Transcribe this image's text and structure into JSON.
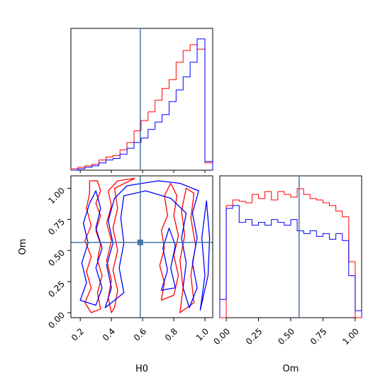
{
  "chart_data": [
    {
      "type": "step-histogram",
      "panel": "H0-marginal",
      "x_range": [
        0.14,
        1.05
      ],
      "truth_x": 0.585,
      "bin_edges": [
        0.14,
        0.185,
        0.23,
        0.275,
        0.32,
        0.365,
        0.41,
        0.455,
        0.5,
        0.545,
        0.59,
        0.635,
        0.68,
        0.725,
        0.77,
        0.815,
        0.86,
        0.905,
        0.95,
        1.0,
        1.05
      ],
      "series": [
        {
          "color": "#ff0000",
          "values": [
            0.01,
            0.02,
            0.03,
            0.04,
            0.07,
            0.09,
            0.1,
            0.14,
            0.19,
            0.27,
            0.34,
            0.4,
            0.48,
            0.56,
            0.62,
            0.74,
            0.82,
            0.86,
            0.83,
            0.05
          ]
        },
        {
          "color": "#0000ff",
          "values": [
            0.0,
            0.01,
            0.02,
            0.03,
            0.05,
            0.07,
            0.08,
            0.11,
            0.15,
            0.19,
            0.22,
            0.28,
            0.33,
            0.38,
            0.47,
            0.55,
            0.64,
            0.74,
            0.9,
            0.06
          ]
        }
      ]
    },
    {
      "type": "contour",
      "panel": "H0-Om-joint",
      "x_range": [
        0.14,
        1.05
      ],
      "y_range": [
        -0.04,
        1.1
      ],
      "xlabel": "H0",
      "ylabel": "Om",
      "x_ticks": [
        "0.2",
        "0.4",
        "0.6",
        "0.8",
        "1.0"
      ],
      "x_tick_values": [
        0.2,
        0.4,
        0.6,
        0.8,
        1.0
      ],
      "y_ticks": [
        "0.00",
        "0.25",
        "0.50",
        "0.75",
        "1.00"
      ],
      "y_tick_values": [
        0.0,
        0.25,
        0.5,
        0.75,
        1.0
      ],
      "truth": {
        "H0": 0.585,
        "Om": 0.565
      },
      "series": [
        {
          "color": "#ff0000",
          "contours": [
            [
              [
                0.26,
                1.06
              ],
              [
                0.31,
                1.06
              ],
              [
                0.33,
                0.98
              ],
              [
                0.3,
                0.88
              ],
              [
                0.33,
                0.78
              ],
              [
                0.3,
                0.66
              ],
              [
                0.33,
                0.55
              ],
              [
                0.31,
                0.42
              ],
              [
                0.34,
                0.3
              ],
              [
                0.31,
                0.16
              ],
              [
                0.33,
                0.03
              ],
              [
                0.27,
                0.0
              ],
              [
                0.23,
                0.08
              ],
              [
                0.27,
                0.2
              ],
              [
                0.24,
                0.33
              ],
              [
                0.27,
                0.45
              ],
              [
                0.23,
                0.58
              ],
              [
                0.27,
                0.7
              ],
              [
                0.24,
                0.84
              ],
              [
                0.26,
                0.96
              ]
            ],
            [
              [
                0.4,
                0.0
              ],
              [
                0.38,
                0.12
              ],
              [
                0.4,
                0.26
              ],
              [
                0.37,
                0.42
              ],
              [
                0.4,
                0.58
              ],
              [
                0.37,
                0.72
              ],
              [
                0.4,
                0.86
              ],
              [
                0.38,
                0.98
              ],
              [
                0.44,
                1.06
              ],
              [
                0.55,
                1.08
              ],
              [
                0.42,
                1.0
              ],
              [
                0.44,
                0.84
              ],
              [
                0.41,
                0.68
              ],
              [
                0.44,
                0.5
              ],
              [
                0.41,
                0.34
              ],
              [
                0.44,
                0.18
              ],
              [
                0.42,
                0.04
              ]
            ],
            [
              [
                0.72,
                0.1
              ],
              [
                0.74,
                0.24
              ],
              [
                0.71,
                0.38
              ],
              [
                0.74,
                0.52
              ],
              [
                0.72,
                0.66
              ],
              [
                0.76,
                0.78
              ],
              [
                0.74,
                0.94
              ],
              [
                0.78,
                1.04
              ],
              [
                0.82,
                0.94
              ],
              [
                0.8,
                0.78
              ],
              [
                0.83,
                0.62
              ],
              [
                0.8,
                0.46
              ],
              [
                0.83,
                0.3
              ],
              [
                0.8,
                0.14
              ]
            ],
            [
              [
                0.84,
                0.0
              ],
              [
                0.86,
                0.2
              ],
              [
                0.84,
                0.42
              ],
              [
                0.87,
                0.62
              ],
              [
                0.85,
                0.82
              ],
              [
                0.88,
                1.0
              ],
              [
                0.93,
                0.96
              ],
              [
                0.91,
                0.76
              ],
              [
                0.94,
                0.54
              ],
              [
                0.91,
                0.3
              ],
              [
                0.93,
                0.08
              ]
            ]
          ]
        },
        {
          "color": "#0000ff",
          "contours": [
            [
              [
                0.2,
                0.1
              ],
              [
                0.24,
                0.24
              ],
              [
                0.21,
                0.4
              ],
              [
                0.25,
                0.56
              ],
              [
                0.22,
                0.72
              ],
              [
                0.26,
                0.88
              ],
              [
                0.3,
                0.98
              ],
              [
                0.33,
                0.84
              ],
              [
                0.3,
                0.68
              ],
              [
                0.34,
                0.52
              ],
              [
                0.3,
                0.36
              ],
              [
                0.34,
                0.2
              ],
              [
                0.3,
                0.06
              ]
            ],
            [
              [
                0.36,
                0.04
              ],
              [
                0.4,
                0.2
              ],
              [
                0.37,
                0.38
              ],
              [
                0.41,
                0.56
              ],
              [
                0.38,
                0.74
              ],
              [
                0.42,
                0.92
              ],
              [
                0.5,
                1.02
              ],
              [
                0.7,
                1.06
              ],
              [
                0.84,
                1.04
              ],
              [
                0.96,
                0.98
              ],
              [
                0.92,
                0.8
              ],
              [
                0.95,
                0.6
              ],
              [
                0.92,
                0.4
              ],
              [
                0.95,
                0.2
              ],
              [
                0.9,
                0.04
              ],
              [
                0.86,
                0.2
              ],
              [
                0.88,
                0.4
              ],
              [
                0.85,
                0.6
              ],
              [
                0.88,
                0.8
              ],
              [
                0.78,
                0.92
              ],
              [
                0.62,
                0.98
              ],
              [
                0.48,
                0.94
              ],
              [
                0.46,
                0.76
              ],
              [
                0.48,
                0.56
              ],
              [
                0.45,
                0.36
              ],
              [
                0.48,
                0.16
              ]
            ],
            [
              [
                0.72,
                0.18
              ],
              [
                0.76,
                0.34
              ],
              [
                0.73,
                0.52
              ],
              [
                0.77,
                0.68
              ],
              [
                0.81,
                0.54
              ],
              [
                0.78,
                0.36
              ],
              [
                0.81,
                0.2
              ]
            ],
            [
              [
                0.97,
                0.02
              ],
              [
                1.0,
                0.3
              ],
              [
                0.98,
                0.6
              ],
              [
                1.01,
                0.9
              ],
              [
                1.03,
                0.6
              ],
              [
                1.02,
                0.3
              ]
            ]
          ]
        }
      ]
    },
    {
      "type": "step-histogram",
      "panel": "Om-marginal",
      "x_range": [
        -0.05,
        1.05
      ],
      "xlabel": "Om",
      "x_ticks": [
        "0.00",
        "0.25",
        "0.50",
        "0.75",
        "1.00"
      ],
      "x_tick_values": [
        0.0,
        0.25,
        0.5,
        0.75,
        1.0
      ],
      "truth_x": 0.565,
      "bin_edges": [
        -0.05,
        0.0,
        0.05,
        0.1,
        0.15,
        0.2,
        0.25,
        0.3,
        0.35,
        0.4,
        0.45,
        0.5,
        0.55,
        0.6,
        0.65,
        0.7,
        0.75,
        0.8,
        0.85,
        0.9,
        0.95,
        1.0,
        1.05
      ],
      "series": [
        {
          "color": "#ff0000",
          "values": [
            0.0,
            0.8,
            0.84,
            0.83,
            0.82,
            0.88,
            0.85,
            0.9,
            0.84,
            0.9,
            0.88,
            0.86,
            0.92,
            0.88,
            0.85,
            0.84,
            0.82,
            0.8,
            0.76,
            0.72,
            0.4,
            0.0
          ]
        },
        {
          "color": "#0000ff",
          "values": [
            0.13,
            0.78,
            0.8,
            0.68,
            0.7,
            0.66,
            0.68,
            0.66,
            0.7,
            0.68,
            0.66,
            0.7,
            0.62,
            0.6,
            0.62,
            0.58,
            0.6,
            0.56,
            0.6,
            0.55,
            0.3,
            0.05
          ]
        }
      ]
    }
  ]
}
